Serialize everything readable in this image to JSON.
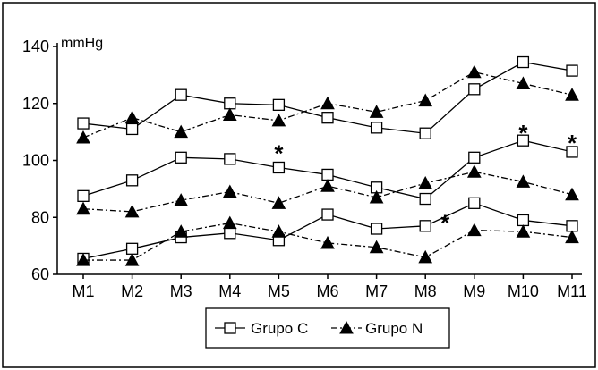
{
  "chart_data": {
    "type": "line",
    "ylabel": "mmHg",
    "ylim": [
      60,
      140
    ],
    "yticks": [
      "140",
      "120",
      "100",
      "80",
      "60"
    ],
    "categories": [
      "M1",
      "M2",
      "M3",
      "M4",
      "M5",
      "M6",
      "M7",
      "M8",
      "M9",
      "M10",
      "M11"
    ],
    "grid": false,
    "legend_position": "bottom",
    "legend": [
      "Grupo C",
      "Grupo N"
    ],
    "series": [
      {
        "name": "Grupo C",
        "group": "Grupo C",
        "marker": "square",
        "line": "solid",
        "values": [
          113,
          111,
          123,
          120,
          119.5,
          115,
          111.5,
          109.5,
          125,
          134.5,
          131.5
        ]
      },
      {
        "name": "Grupo C",
        "group": "Grupo C",
        "marker": "square",
        "line": "solid",
        "values": [
          87.5,
          93,
          101,
          100.5,
          97.5,
          95,
          90.5,
          86.5,
          101,
          107,
          103
        ]
      },
      {
        "name": "Grupo C",
        "group": "Grupo C",
        "marker": "square",
        "line": "solid",
        "values": [
          65.5,
          69,
          73,
          74.5,
          72,
          81,
          76,
          77,
          85,
          79,
          77
        ]
      },
      {
        "name": "Grupo N",
        "group": "Grupo N",
        "marker": "triangle",
        "line": "dashdot",
        "values": [
          108,
          115,
          110,
          116,
          114,
          120,
          117,
          121,
          131,
          127,
          123
        ]
      },
      {
        "name": "Grupo N",
        "group": "Grupo N",
        "marker": "triangle",
        "line": "dashdot",
        "values": [
          83,
          82,
          86,
          89,
          85,
          91,
          87,
          92,
          96,
          92.5,
          88
        ]
      },
      {
        "name": "Grupo N",
        "group": "Grupo N",
        "marker": "triangle",
        "line": "dashdot",
        "values": [
          65,
          65,
          75,
          78,
          75,
          71,
          69.5,
          66,
          75.5,
          75,
          73
        ]
      }
    ],
    "annotations": [
      {
        "text": "*",
        "category": "M5",
        "value": 103.5
      },
      {
        "text": "*",
        "category": "M8",
        "value": 79
      },
      {
        "text": "*",
        "category": "M10",
        "value": 110.5
      },
      {
        "text": "*",
        "category": "M11",
        "value": 107
      }
    ]
  }
}
